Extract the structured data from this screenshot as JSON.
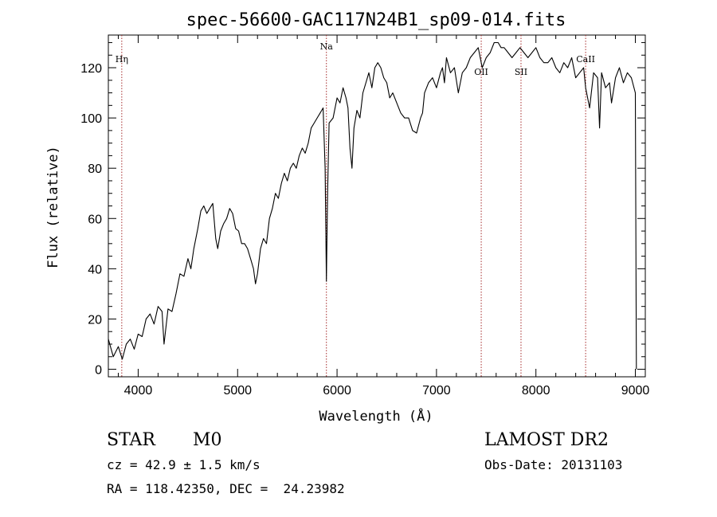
{
  "chart_data": {
    "type": "line",
    "title": "spec-56600-GAC117N24B1_sp09-014.fits",
    "xlabel": "Wavelength (Å)",
    "ylabel": "Flux (relative)",
    "xlim": [
      3700,
      9100
    ],
    "ylim": [
      -3,
      133
    ],
    "x_ticks": [
      4000,
      5000,
      6000,
      7000,
      8000,
      9000
    ],
    "y_ticks": [
      0,
      20,
      40,
      60,
      80,
      100,
      120
    ],
    "grid": false,
    "line_color": "#000000",
    "marker_color": "#a52a2a",
    "lines": [
      {
        "label": "Hη",
        "wavelength": 3835
      },
      {
        "label": "Na",
        "wavelength": 5893
      },
      {
        "label": "OII",
        "wavelength": 7450
      },
      {
        "label": "SII",
        "wavelength": 7850
      },
      {
        "label": "CaII",
        "wavelength": 8500
      }
    ],
    "series": [
      {
        "x": [
          3700,
          3750,
          3800,
          3840,
          3880,
          3920,
          3960,
          4000,
          4040,
          4080,
          4120,
          4160,
          4200,
          4240,
          4260,
          4300,
          4340,
          4380,
          4420,
          4460,
          4500,
          4530,
          4560,
          4600,
          4630,
          4660,
          4690,
          4720,
          4750,
          4780,
          4800,
          4830,
          4860,
          4890,
          4920,
          4950,
          4980,
          5010,
          5040,
          5070,
          5100,
          5130,
          5160,
          5180,
          5200,
          5230,
          5260,
          5290,
          5320,
          5350,
          5380,
          5410,
          5440,
          5470,
          5500,
          5530,
          5560,
          5590,
          5620,
          5650,
          5680,
          5710,
          5740,
          5770,
          5800,
          5830,
          5860,
          5880,
          5893,
          5905,
          5920,
          5960,
          6000,
          6030,
          6060,
          6090,
          6110,
          6130,
          6150,
          6170,
          6200,
          6230,
          6260,
          6290,
          6320,
          6350,
          6380,
          6410,
          6440,
          6470,
          6500,
          6530,
          6560,
          6600,
          6640,
          6680,
          6720,
          6760,
          6800,
          6840,
          6860,
          6880,
          6920,
          6960,
          7000,
          7040,
          7060,
          7080,
          7100,
          7140,
          7180,
          7220,
          7260,
          7300,
          7340,
          7380,
          7420,
          7460,
          7500,
          7540,
          7580,
          7620,
          7650,
          7680,
          7720,
          7760,
          7800,
          7840,
          7880,
          7920,
          7960,
          8000,
          8040,
          8080,
          8120,
          8160,
          8200,
          8240,
          8280,
          8320,
          8360,
          8400,
          8440,
          8480,
          8500,
          8540,
          8580,
          8620,
          8640,
          8660,
          8700,
          8740,
          8760,
          8800,
          8840,
          8880,
          8920,
          8960,
          9000,
          9010
        ],
        "y": [
          12,
          5,
          9,
          4,
          10,
          12,
          8,
          14,
          13,
          20,
          22,
          18,
          25,
          23,
          10,
          24,
          23,
          30,
          38,
          37,
          44,
          40,
          48,
          56,
          63,
          65,
          62,
          64,
          66,
          52,
          48,
          55,
          58,
          60,
          64,
          62,
          56,
          55,
          50,
          50,
          48,
          44,
          40,
          34,
          38,
          48,
          52,
          50,
          60,
          64,
          70,
          68,
          74,
          78,
          75,
          80,
          82,
          80,
          85,
          88,
          86,
          90,
          96,
          98,
          100,
          102,
          104,
          80,
          35,
          70,
          98,
          100,
          108,
          106,
          112,
          108,
          104,
          88,
          80,
          96,
          103,
          100,
          110,
          114,
          118,
          112,
          120,
          122,
          120,
          116,
          114,
          108,
          110,
          106,
          102,
          100,
          100,
          95,
          94,
          100,
          102,
          110,
          114,
          116,
          112,
          118,
          120,
          114,
          124,
          118,
          120,
          110,
          118,
          120,
          124,
          126,
          128,
          120,
          124,
          126,
          130,
          130,
          128,
          128,
          126,
          124,
          126,
          128,
          126,
          124,
          126,
          128,
          124,
          122,
          122,
          124,
          120,
          118,
          122,
          120,
          124,
          116,
          118,
          120,
          112,
          104,
          118,
          116,
          96,
          118,
          112,
          114,
          106,
          116,
          120,
          114,
          118,
          116,
          110,
          0
        ]
      }
    ]
  },
  "info": {
    "class": "STAR",
    "subclass": "M0",
    "survey": "LAMOST DR2",
    "cz": "cz = 42.9 ± 1.5 km/s",
    "obs_date": "Obs-Date: 20131103",
    "coords": "RA = 118.42350, DEC =  24.23982"
  }
}
